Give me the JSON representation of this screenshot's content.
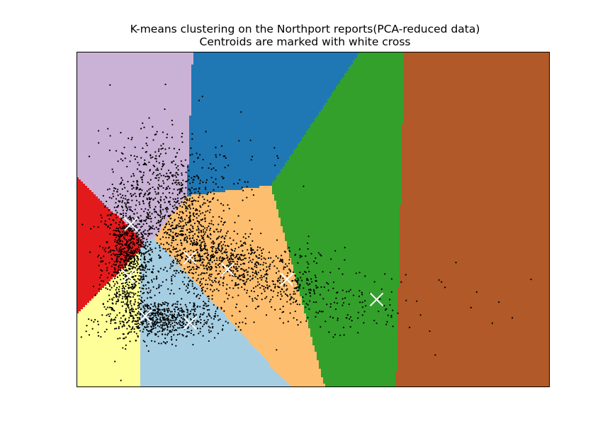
{
  "chart_data": {
    "type": "scatter",
    "title": "K-means clustering on the Northport reports(PCA-reduced data)",
    "subtitle": "Centroids are marked with white cross",
    "xlabel": "",
    "ylabel": "",
    "xlim": [
      0,
      1
    ],
    "ylim": [
      0,
      1
    ],
    "grid": false,
    "ticks": "hidden",
    "n_clusters": 8,
    "region_colors": {
      "cluster_lavender": "#cab2d6",
      "cluster_blue": "#1f78b4",
      "cluster_green": "#33a02c",
      "cluster_brown": "#b15928",
      "cluster_orange": "#fdbf6f",
      "cluster_red": "#e31a1c",
      "cluster_yellow": "#ffff99",
      "cluster_lightblue": "#a6cee3"
    },
    "point_color": "#000000",
    "centroid_color": "#ffffff",
    "centroids": [
      {
        "x": 0.115,
        "y": 0.485
      },
      {
        "x": 0.11,
        "y": 0.33
      },
      {
        "x": 0.145,
        "y": 0.21
      },
      {
        "x": 0.24,
        "y": 0.385
      },
      {
        "x": 0.24,
        "y": 0.19
      },
      {
        "x": 0.32,
        "y": 0.35
      },
      {
        "x": 0.445,
        "y": 0.32
      },
      {
        "x": 0.635,
        "y": 0.26
      }
    ],
    "point_clouds": [
      {
        "cx": 0.11,
        "cy": 0.38,
        "sx": 0.028,
        "sy": 0.09,
        "n": 900
      },
      {
        "cx": 0.18,
        "cy": 0.2,
        "sx": 0.06,
        "sy": 0.03,
        "n": 650
      },
      {
        "cx": 0.24,
        "cy": 0.44,
        "sx": 0.035,
        "sy": 0.09,
        "n": 550
      },
      {
        "cx": 0.17,
        "cy": 0.58,
        "sx": 0.05,
        "sy": 0.09,
        "n": 450
      },
      {
        "cx": 0.33,
        "cy": 0.36,
        "sx": 0.045,
        "sy": 0.05,
        "n": 420
      },
      {
        "cx": 0.45,
        "cy": 0.31,
        "sx": 0.05,
        "sy": 0.05,
        "n": 260
      },
      {
        "cx": 0.58,
        "cy": 0.23,
        "sx": 0.07,
        "sy": 0.045,
        "n": 90
      },
      {
        "cx": 0.25,
        "cy": 0.62,
        "sx": 0.09,
        "sy": 0.09,
        "n": 130
      },
      {
        "cx": 0.75,
        "cy": 0.28,
        "sx": 0.13,
        "sy": 0.07,
        "n": 18
      }
    ]
  }
}
